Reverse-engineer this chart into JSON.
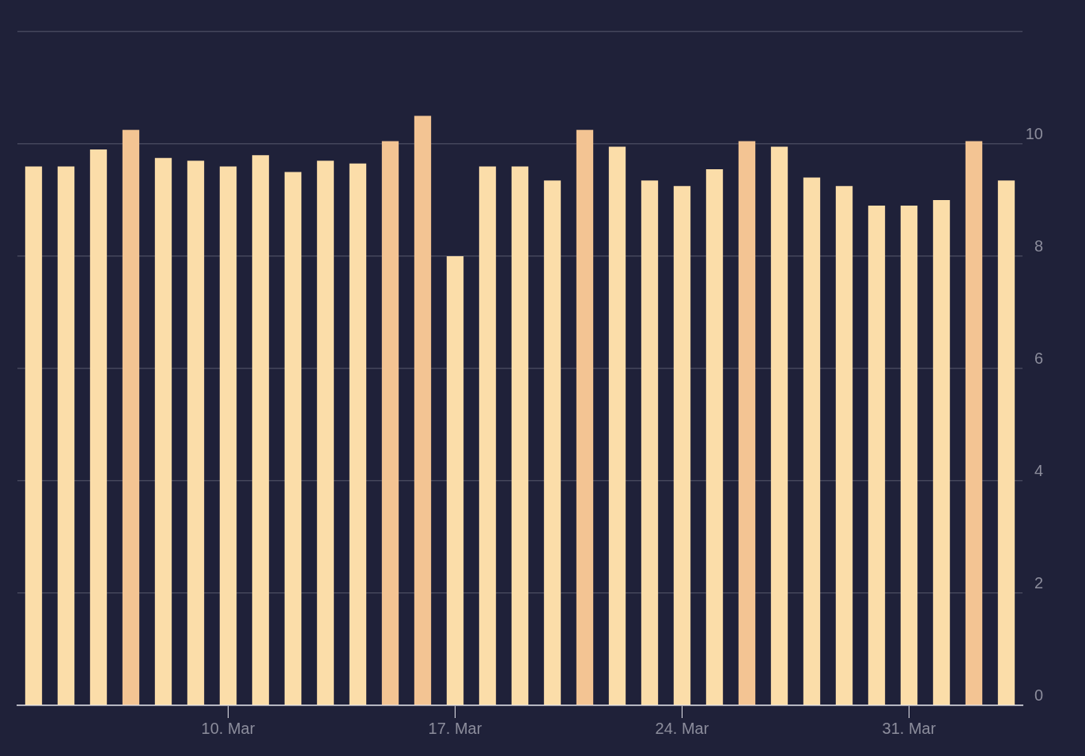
{
  "chart_data": {
    "type": "bar",
    "categories": [
      null,
      null,
      null,
      null,
      null,
      null,
      "10. Mar",
      null,
      null,
      null,
      null,
      null,
      null,
      "17. Mar",
      null,
      null,
      null,
      null,
      null,
      null,
      "24. Mar",
      null,
      null,
      null,
      null,
      null,
      null,
      "31. Mar",
      null,
      null,
      null
    ],
    "values": [
      9.6,
      9.6,
      9.9,
      10.25,
      9.75,
      9.7,
      9.6,
      9.8,
      9.5,
      9.7,
      9.65,
      10.05,
      10.5,
      8,
      9.6,
      9.6,
      9.35,
      10.25,
      9.95,
      9.35,
      9.25,
      9.55,
      10.05,
      9.95,
      9.4,
      9.25,
      8.9,
      8.9,
      9.0,
      10.05,
      9.35
    ],
    "colors": [
      "#fbdda9",
      "#fbdda9",
      "#fbdda9",
      "#f3c493",
      "#fbdda9",
      "#fbdda9",
      "#fbdda9",
      "#fbdda9",
      "#fbdda9",
      "#fbdda9",
      "#fbdda9",
      "#f3c493",
      "#f3c493",
      "#fbdda9",
      "#fbdda9",
      "#fbdda9",
      "#fbdda9",
      "#f3c493",
      "#fbdda9",
      "#fbdda9",
      "#fbdda9",
      "#fbdda9",
      "#f3c493",
      "#fbdda9",
      "#fbdda9",
      "#fbdda9",
      "#fbdda9",
      "#fbdda9",
      "#fbdda9",
      "#f3c493",
      "#fbdda9"
    ],
    "ylim": [
      0,
      12
    ],
    "yticks": [
      0,
      2,
      4,
      6,
      8,
      10,
      {
        "value": 12,
        "label": null
      }
    ],
    "grid": "y",
    "legend": false
  }
}
